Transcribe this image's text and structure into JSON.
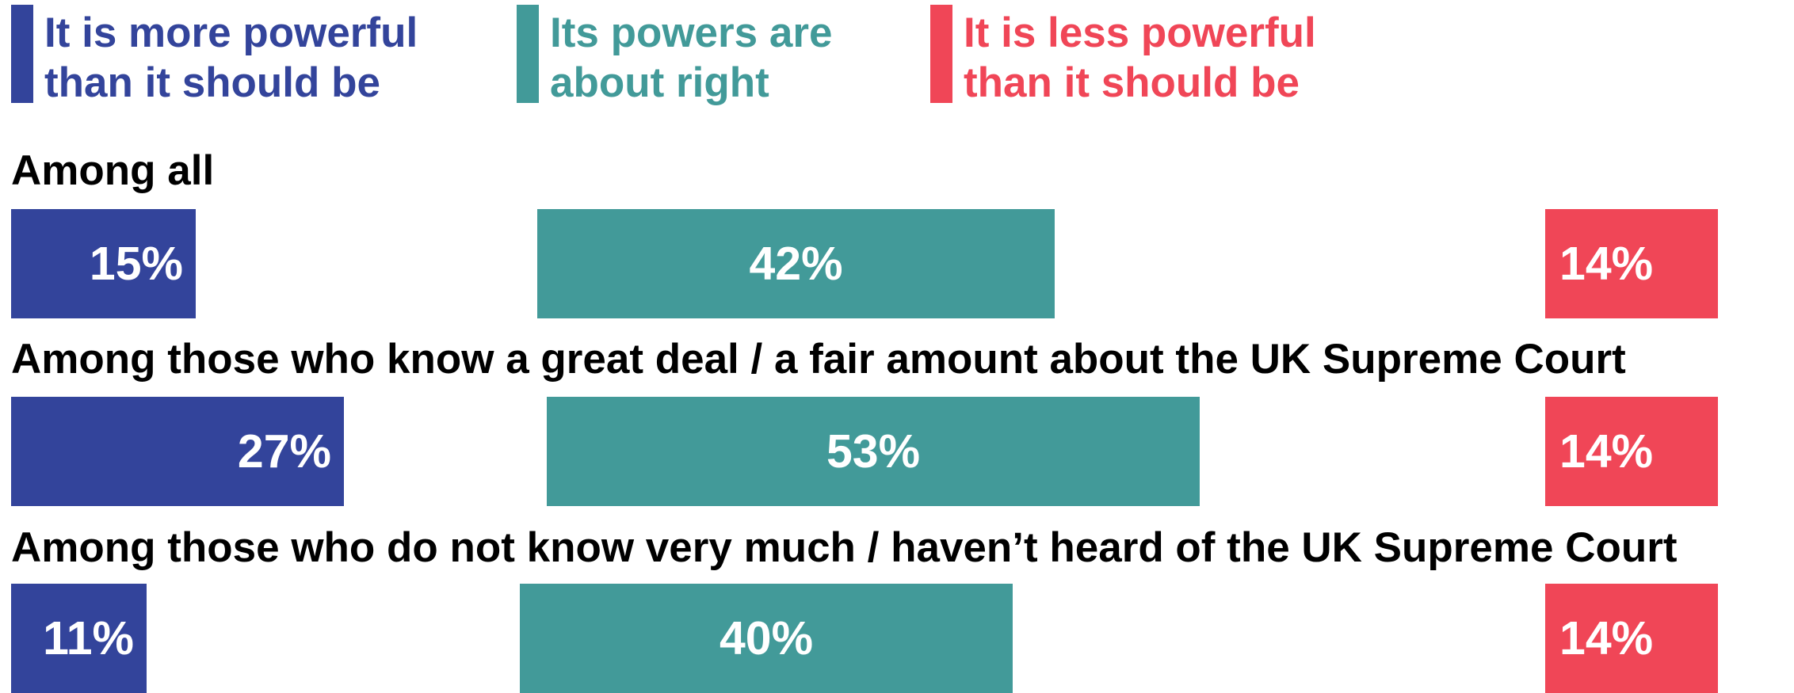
{
  "chart_data": {
    "type": "bar",
    "orientation": "horizontal",
    "stacked": false,
    "categories": [
      "Among all",
      "Among those who know a great deal / a fair amount about the UK Supreme Court",
      "Among those who do not know very much / haven’t heard of the UK Supreme Court"
    ],
    "series": [
      {
        "name": "It is more powerful\nthan it should be",
        "color": "#33449B",
        "values": [
          15,
          27,
          11
        ],
        "labels": [
          "15%",
          "27%",
          "11%"
        ]
      },
      {
        "name": "Its powers are\nabout right",
        "color": "#429A99",
        "values": [
          42,
          53,
          40
        ],
        "labels": [
          "42%",
          "53%",
          "40%"
        ]
      },
      {
        "name": "It is less powerful\nthan it should be",
        "color": "#F04657",
        "values": [
          14,
          14,
          14
        ],
        "labels": [
          "14%",
          "14%",
          "14%"
        ]
      }
    ],
    "unit": "%",
    "legend_position": "top",
    "grid": false,
    "axes_visible": false
  }
}
